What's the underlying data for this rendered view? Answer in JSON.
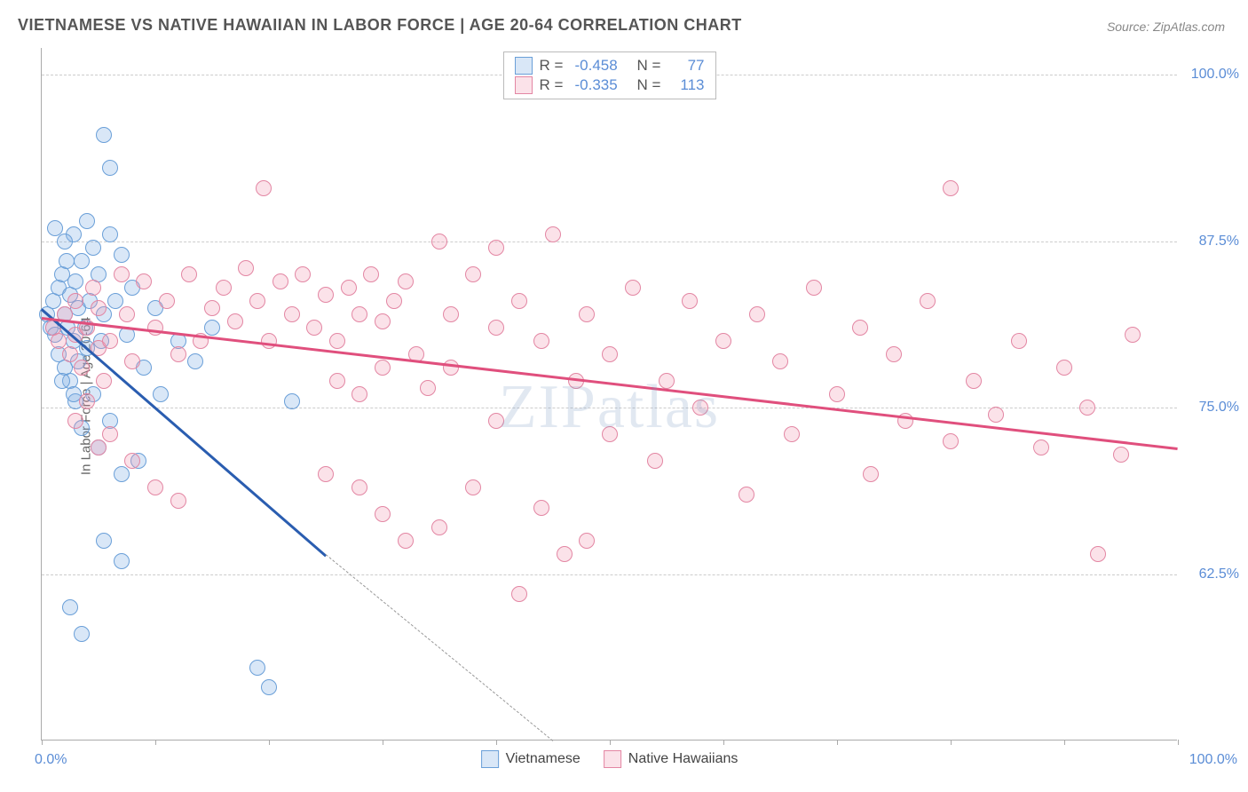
{
  "title": "VIETNAMESE VS NATIVE HAWAIIAN IN LABOR FORCE | AGE 20-64 CORRELATION CHART",
  "source": "Source: ZipAtlas.com",
  "ylabel": "In Labor Force | Age 20-64",
  "watermark": "ZIPatlas",
  "chart": {
    "type": "scatter",
    "background_color": "#ffffff",
    "grid_color": "#cccccc",
    "axis_color": "#aaaaaa",
    "tick_label_color": "#5b8dd6",
    "axis_label_color": "#666666",
    "title_color": "#555555",
    "title_fontsize": 18,
    "label_fontsize": 15,
    "tick_fontsize": 16,
    "xlim": [
      0,
      100
    ],
    "ylim": [
      50,
      102
    ],
    "ytick_values": [
      62.5,
      75.0,
      87.5,
      100.0
    ],
    "ytick_labels": [
      "62.5%",
      "75.0%",
      "87.5%",
      "100.0%"
    ],
    "xtick_values": [
      0,
      10,
      20,
      30,
      40,
      50,
      60,
      70,
      80,
      90,
      100
    ],
    "x_origin_label": "0.0%",
    "x_max_label": "100.0%",
    "marker_radius": 9,
    "marker_border_width": 1.5,
    "series": [
      {
        "name": "Vietnamese",
        "fill": "rgba(130,175,230,0.30)",
        "stroke": "#6a9fd8",
        "trend_color": "#2a5db0",
        "trend_width": 2.5,
        "r": -0.458,
        "n": 77,
        "trend_p1": [
          0,
          82.5
        ],
        "trend_p2": [
          25,
          64.0
        ],
        "trend_dash_p2": [
          45,
          50.0
        ],
        "points": [
          [
            0.5,
            82
          ],
          [
            0.8,
            81
          ],
          [
            1.0,
            83
          ],
          [
            1.2,
            80.5
          ],
          [
            1.5,
            84
          ],
          [
            1.5,
            79
          ],
          [
            1.8,
            85
          ],
          [
            2.0,
            82
          ],
          [
            2.0,
            78
          ],
          [
            2.2,
            86
          ],
          [
            2.3,
            81
          ],
          [
            2.5,
            83.5
          ],
          [
            2.5,
            77
          ],
          [
            2.8,
            88
          ],
          [
            2.8,
            80
          ],
          [
            3.0,
            84.5
          ],
          [
            3.0,
            75.5
          ],
          [
            3.2,
            82.5
          ],
          [
            3.5,
            86
          ],
          [
            3.5,
            73.5
          ],
          [
            3.8,
            81
          ],
          [
            4.0,
            89
          ],
          [
            4.0,
            79.5
          ],
          [
            4.2,
            83
          ],
          [
            4.5,
            87
          ],
          [
            4.5,
            76
          ],
          [
            5.0,
            85
          ],
          [
            5.0,
            72
          ],
          [
            5.2,
            80
          ],
          [
            5.5,
            82
          ],
          [
            6.0,
            88
          ],
          [
            6.0,
            74
          ],
          [
            6.5,
            83
          ],
          [
            7.0,
            86.5
          ],
          [
            7.0,
            70
          ],
          [
            7.5,
            80.5
          ],
          [
            5.5,
            95.5
          ],
          [
            6.0,
            93
          ],
          [
            1.2,
            88.5
          ],
          [
            2.0,
            87.5
          ],
          [
            8.0,
            84
          ],
          [
            8.5,
            71
          ],
          [
            9.0,
            78
          ],
          [
            10.0,
            82.5
          ],
          [
            10.5,
            76
          ],
          [
            12.0,
            80
          ],
          [
            13.5,
            78.5
          ],
          [
            15.0,
            81
          ],
          [
            5.5,
            65
          ],
          [
            7.0,
            63.5
          ],
          [
            2.5,
            60
          ],
          [
            3.5,
            58
          ],
          [
            19,
            55.5
          ],
          [
            20,
            54
          ],
          [
            22,
            75.5
          ],
          [
            1.8,
            77
          ],
          [
            2.8,
            76
          ],
          [
            3.2,
            78.5
          ]
        ]
      },
      {
        "name": "Native Hawaiians",
        "fill": "rgba(240,150,175,0.28)",
        "stroke": "#e386a3",
        "trend_color": "#e04f7d",
        "trend_width": 2.5,
        "r": -0.335,
        "n": 113,
        "trend_p1": [
          0,
          81.8
        ],
        "trend_p2": [
          100,
          72.0
        ],
        "points": [
          [
            1,
            81
          ],
          [
            1.5,
            80
          ],
          [
            2,
            82
          ],
          [
            2.5,
            79
          ],
          [
            3,
            80.5
          ],
          [
            3,
            83
          ],
          [
            3.5,
            78
          ],
          [
            4,
            81
          ],
          [
            4.5,
            84
          ],
          [
            5,
            79.5
          ],
          [
            5,
            82.5
          ],
          [
            5.5,
            77
          ],
          [
            6,
            80
          ],
          [
            7,
            85
          ],
          [
            7.5,
            82
          ],
          [
            8,
            78.5
          ],
          [
            9,
            84.5
          ],
          [
            10,
            81
          ],
          [
            11,
            83
          ],
          [
            12,
            79
          ],
          [
            13,
            85
          ],
          [
            14,
            80
          ],
          [
            15,
            82.5
          ],
          [
            16,
            84
          ],
          [
            17,
            81.5
          ],
          [
            18,
            85.5
          ],
          [
            19,
            83
          ],
          [
            20,
            80
          ],
          [
            21,
            84.5
          ],
          [
            22,
            82
          ],
          [
            23,
            85
          ],
          [
            24,
            81
          ],
          [
            25,
            83.5
          ],
          [
            26,
            80
          ],
          [
            27,
            84
          ],
          [
            28,
            82
          ],
          [
            29,
            85
          ],
          [
            30,
            81.5
          ],
          [
            31,
            83
          ],
          [
            32,
            84.5
          ],
          [
            33,
            79
          ],
          [
            19.5,
            91.5
          ],
          [
            35,
            87.5
          ],
          [
            36,
            82
          ],
          [
            38,
            85
          ],
          [
            40,
            87
          ],
          [
            40,
            81
          ],
          [
            42,
            83
          ],
          [
            44,
            80
          ],
          [
            45,
            88
          ],
          [
            46,
            64
          ],
          [
            48,
            82
          ],
          [
            50,
            79
          ],
          [
            50,
            73
          ],
          [
            52,
            84
          ],
          [
            54,
            71
          ],
          [
            55,
            77
          ],
          [
            57,
            83
          ],
          [
            58,
            75
          ],
          [
            60,
            80
          ],
          [
            62,
            68.5
          ],
          [
            63,
            82
          ],
          [
            65,
            78.5
          ],
          [
            66,
            73
          ],
          [
            68,
            84
          ],
          [
            70,
            76
          ],
          [
            72,
            81
          ],
          [
            73,
            70
          ],
          [
            75,
            79
          ],
          [
            76,
            74
          ],
          [
            78,
            83
          ],
          [
            80,
            72.5
          ],
          [
            80,
            91.5
          ],
          [
            82,
            77
          ],
          [
            84,
            74.5
          ],
          [
            86,
            80
          ],
          [
            88,
            72
          ],
          [
            90,
            78
          ],
          [
            92,
            75
          ],
          [
            93,
            64
          ],
          [
            95,
            71.5
          ],
          [
            96,
            80.5
          ],
          [
            3,
            74
          ],
          [
            4,
            75.5
          ],
          [
            5,
            72
          ],
          [
            6,
            73
          ],
          [
            8,
            71
          ],
          [
            10,
            69
          ],
          [
            12,
            68
          ],
          [
            25,
            70
          ],
          [
            28,
            69
          ],
          [
            30,
            67
          ],
          [
            32,
            65
          ],
          [
            35,
            66
          ],
          [
            38,
            69
          ],
          [
            26,
            77
          ],
          [
            28,
            76
          ],
          [
            30,
            78
          ],
          [
            34,
            76.5
          ],
          [
            36,
            78
          ],
          [
            40,
            74
          ],
          [
            44,
            67.5
          ],
          [
            48,
            65
          ],
          [
            42,
            61
          ],
          [
            47,
            77
          ]
        ]
      }
    ],
    "legend_top": {
      "border_color": "#bbbbbb",
      "label_color": "#555555",
      "value_color": "#5b8dd6",
      "r_label": "R =",
      "n_label": "N ="
    },
    "legend_bottom": {
      "text_color": "#444444"
    }
  }
}
